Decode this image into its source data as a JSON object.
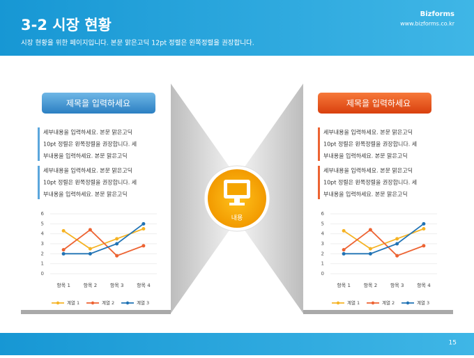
{
  "header": {
    "title": "3-2 시장 현황",
    "subtitle": "시장 현황을 위한 페이지입니다. 본문 맑은고딕 12pt 정렬은 왼쪽정렬을 권장합니다.",
    "brand": "Bizforms",
    "url": "www.bizforms.co.kr"
  },
  "panels": [
    {
      "heading": "제목을 입력하세요",
      "paragraphs": [
        [
          "세부내용을 입력하세요. 본문 맑은고딕",
          "10pt 정렬은 왼쪽정렬을 권장합니다. 세",
          "부내용을 입력하세요. 본문 맑은고딕"
        ],
        [
          "세부내용을 입력하세요. 본문 맑은고딕",
          "10pt 정렬은 왼쪽정렬을 권장합니다. 세",
          "부내용을 입력하세요. 본문 맑은고딕"
        ]
      ]
    },
    {
      "heading": "제목을 입력하세요",
      "paragraphs": [
        [
          "세부내용을 입력하세요. 본문 맑은고딕",
          "10pt 정렬은 왼쪽정렬을 권장합니다. 세",
          "부내용을 입력하세요. 본문 맑은고딕"
        ],
        [
          "세부내용을 입력하세요. 본문 맑은고딕",
          "10pt 정렬은 왼쪽정렬을 권장합니다. 세",
          "부내용을 입력하세요. 본문 맑은고딕"
        ]
      ]
    }
  ],
  "center": {
    "label": "내용"
  },
  "footer": {
    "page": "15"
  },
  "chart_data": [
    {
      "type": "line",
      "categories": [
        "항목 1",
        "항목 2",
        "항목 3",
        "항목 4"
      ],
      "ylim": [
        0,
        6
      ],
      "yticks": [
        0,
        1,
        2,
        3,
        4,
        5,
        6
      ],
      "grid": true,
      "series": [
        {
          "name": "계열 1",
          "color": "#f5b324",
          "values": [
            4.3,
            2.5,
            3.5,
            4.5
          ]
        },
        {
          "name": "계열 2",
          "color": "#ed6332",
          "values": [
            2.4,
            4.4,
            1.8,
            2.8
          ]
        },
        {
          "name": "계열 3",
          "color": "#1f72b4",
          "values": [
            2,
            2,
            3,
            5
          ]
        }
      ]
    },
    {
      "type": "line",
      "categories": [
        "항목 1",
        "항목 2",
        "항목 3",
        "항목 4"
      ],
      "ylim": [
        0,
        6
      ],
      "yticks": [
        0,
        1,
        2,
        3,
        4,
        5,
        6
      ],
      "grid": true,
      "series": [
        {
          "name": "계열 1",
          "color": "#f5b324",
          "values": [
            4.3,
            2.5,
            3.5,
            4.5
          ]
        },
        {
          "name": "계열 2",
          "color": "#ed6332",
          "values": [
            2.4,
            4.4,
            1.8,
            2.8
          ]
        },
        {
          "name": "계열 3",
          "color": "#1f72b4",
          "values": [
            2,
            2,
            3,
            5
          ]
        }
      ]
    }
  ]
}
